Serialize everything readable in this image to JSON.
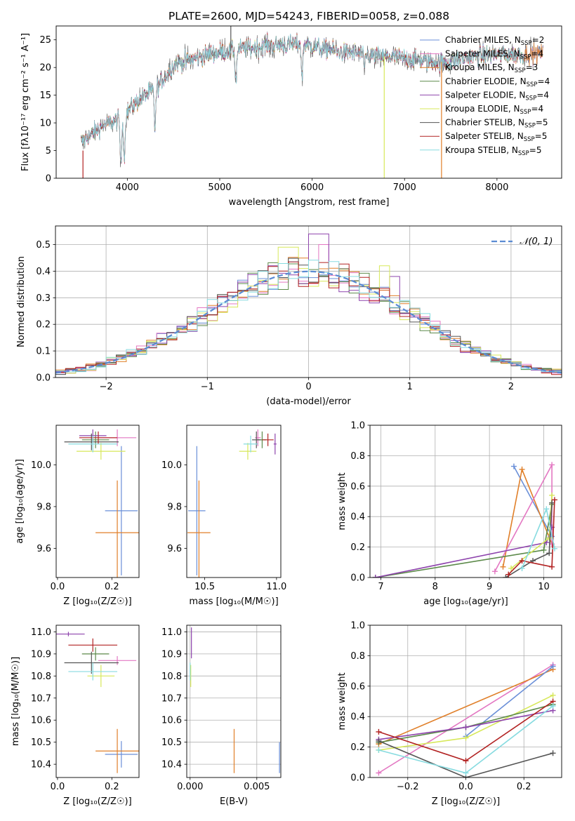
{
  "colors": {
    "chabrier_miles": "#6a8fd8",
    "salpeter_miles": "#e377c2",
    "kroupa_miles": "#e07f29",
    "chabrier_elodie": "#5c8a4a",
    "salpeter_elodie": "#8e44ad",
    "kroupa_elodie": "#d7e85a",
    "chabrier_stelib": "#555555",
    "salpeter_stelib": "#b22222",
    "kroupa_stelib": "#87dbe0",
    "grid": "#b0b0b0"
  },
  "chart_data": [
    {
      "id": "spectrum",
      "type": "line",
      "title": "PLATE=2600, MJD=54243, FIBERID=0058, z=0.088",
      "xlabel": "wavelength [Angstrom, rest frame]",
      "ylabel": "Flux [fλ10⁻¹⁷ erg cm⁻² s⁻¹ A⁻¹]",
      "xlim": [
        3230,
        8700
      ],
      "ylim": [
        0,
        27.5
      ],
      "xticks": [
        "4000",
        "5000",
        "6000",
        "7000",
        "8000"
      ],
      "yticks": [
        "0",
        "5",
        "10",
        "15",
        "20",
        "25"
      ],
      "grid": false,
      "legend_position": "top-right",
      "legend": [
        {
          "key": "chabrier_miles",
          "label": "Chabrier MILES, N",
          "sub": "SSP",
          "suffix": "=2"
        },
        {
          "key": "salpeter_miles",
          "label": "Salpeter MILES, N",
          "sub": "SSP",
          "suffix": "=4"
        },
        {
          "key": "kroupa_miles",
          "label": "Kroupa MILES, N",
          "sub": "SSP",
          "suffix": "=3"
        },
        {
          "key": "chabrier_elodie",
          "label": "Chabrier ELODIE, N",
          "sub": "SSP",
          "suffix": "=4"
        },
        {
          "key": "salpeter_elodie",
          "label": "Salpeter ELODIE, N",
          "sub": "SSP",
          "suffix": "=4"
        },
        {
          "key": "kroupa_elodie",
          "label": "Kroupa ELODIE, N",
          "sub": "SSP",
          "suffix": "=4"
        },
        {
          "key": "chabrier_stelib",
          "label": "Chabrier STELIB, N",
          "sub": "SSP",
          "suffix": "=5"
        },
        {
          "key": "salpeter_stelib",
          "label": "Salpeter STELIB, N",
          "sub": "SSP",
          "suffix": "=5"
        },
        {
          "key": "kroupa_stelib",
          "label": "Kroupa STELIB, N",
          "sub": "SSP",
          "suffix": "=5"
        }
      ],
      "continuum": {
        "wavelength": [
          3500,
          3650,
          3800,
          3950,
          4050,
          4150,
          4300,
          4500,
          4700,
          4900,
          5100,
          5300,
          5500,
          5700,
          5900,
          6100,
          6300,
          6500,
          6700,
          6900,
          7100,
          7300,
          7500,
          7700,
          7900,
          8100,
          8300,
          8500
        ],
        "flux": [
          6.5,
          8.5,
          10.0,
          11.0,
          13.0,
          14.5,
          16.0,
          20.5,
          21.5,
          22.5,
          23.0,
          23.5,
          24.0,
          24.0,
          24.3,
          23.5,
          22.8,
          22.5,
          22.0,
          21.8,
          21.5,
          21.0,
          21.0,
          21.8,
          22.2,
          22.3,
          22.4,
          22.5
        ],
        "noise_amplitude": 1.5
      },
      "dips": [
        {
          "wavelength": 3930,
          "flux": 2.0
        },
        {
          "wavelength": 3968,
          "flux": 3.5
        },
        {
          "wavelength": 4300,
          "flux": 9.0
        },
        {
          "wavelength": 5175,
          "flux": 17.5
        },
        {
          "wavelength": 5890,
          "flux": 18.0
        },
        {
          "wavelength": 6563,
          "flux": 19.5
        }
      ],
      "spikes": [
        {
          "key": "kroupa_elodie",
          "wavelength": 6780,
          "from": 22.0,
          "to": 0
        },
        {
          "key": "kroupa_miles",
          "wavelength": 7400,
          "from": 21.0,
          "to": 0
        },
        {
          "key": "chabrier_stelib",
          "wavelength": 5120,
          "from": 23.0,
          "to": 27.5
        },
        {
          "key": "salpeter_stelib",
          "wavelength": 3520,
          "from": 5.0,
          "to": 0
        }
      ]
    },
    {
      "id": "residuals",
      "type": "histogram",
      "xlabel": "(data-model)/error",
      "ylabel": "Normed distribution",
      "xlim": [
        -2.5,
        2.5
      ],
      "ylim": [
        0,
        0.57
      ],
      "xticks": [
        "−2",
        "−1",
        "0",
        "1",
        "2"
      ],
      "yticks": [
        "0.0",
        "0.1",
        "0.2",
        "0.3",
        "0.4",
        "0.5"
      ],
      "grid": true,
      "legend_position": "top-right",
      "legend": [
        {
          "label": "𝒩(0, 1)"
        }
      ],
      "reference": {
        "type": "normal",
        "mean": 0,
        "std": 1
      },
      "bin_width": 0.1,
      "spikes": [
        {
          "key": "salpeter_elodie",
          "x": 0.1,
          "y": 0.54
        },
        {
          "key": "salpeter_miles",
          "x": 0.15,
          "y": 0.5
        },
        {
          "key": "kroupa_elodie",
          "x": -0.2,
          "y": 0.49
        },
        {
          "key": "kroupa_elodie",
          "x": 0.75,
          "y": 0.42
        },
        {
          "key": "salpeter_elodie",
          "x": 0.85,
          "y": 0.38
        }
      ]
    },
    {
      "id": "age-z",
      "type": "errorbar",
      "xlabel": "Z [log₁₀(Z/Z☉)]",
      "ylabel": "age  [log₁₀(age/yr)]",
      "xlim": [
        -0.005,
        0.3
      ],
      "ylim": [
        9.46,
        10.19
      ],
      "xticks": [
        "0.0",
        "0.2"
      ],
      "yticks": [
        "9.6",
        "9.8",
        "10.0"
      ],
      "grid": false,
      "points": [
        {
          "key": "chabrier_miles",
          "x": 0.235,
          "xerr": 0.06,
          "y": 9.78,
          "yerr": 0.31
        },
        {
          "key": "kroupa_miles",
          "x": 0.22,
          "xerr": 0.08,
          "y": 9.675,
          "yerr": 0.25
        },
        {
          "key": "salpeter_miles",
          "x": 0.22,
          "xerr": 0.07,
          "y": 10.13,
          "yerr": 0.04
        },
        {
          "key": "chabrier_elodie",
          "x": 0.14,
          "xerr": 0.05,
          "y": 10.12,
          "yerr": 0.04
        },
        {
          "key": "salpeter_elodie",
          "x": 0.13,
          "xerr": 0.05,
          "y": 10.14,
          "yerr": 0.03
        },
        {
          "key": "kroupa_elodie",
          "x": 0.16,
          "xerr": 0.09,
          "y": 10.065,
          "yerr": 0.04
        },
        {
          "key": "chabrier_stelib",
          "x": 0.125,
          "xerr": 0.1,
          "y": 10.11,
          "yerr": 0.04
        },
        {
          "key": "salpeter_stelib",
          "x": 0.15,
          "xerr": 0.07,
          "y": 10.13,
          "yerr": 0.03
        },
        {
          "key": "kroupa_stelib",
          "x": 0.13,
          "xerr": 0.09,
          "y": 10.1,
          "yerr": 0.04
        }
      ]
    },
    {
      "id": "age-mass",
      "type": "errorbar",
      "xlabel": "mass [log₁₀(M/M☉)]",
      "ylabel": "",
      "xlim": [
        10.375,
        11.03
      ],
      "ylim": [
        9.46,
        10.19
      ],
      "xticks": [
        "10.5",
        "11.0"
      ],
      "yticks": [
        "9.6",
        "9.8",
        "10.0"
      ],
      "grid": false,
      "points": [
        {
          "key": "chabrier_miles",
          "x": 10.445,
          "xerr": 0.06,
          "y": 9.78,
          "yerr": 0.31
        },
        {
          "key": "kroupa_miles",
          "x": 10.46,
          "xerr": 0.08,
          "y": 9.675,
          "yerr": 0.25
        },
        {
          "key": "salpeter_miles",
          "x": 10.87,
          "xerr": 0.02,
          "y": 10.13,
          "yerr": 0.04
        },
        {
          "key": "chabrier_elodie",
          "x": 10.9,
          "xerr": 0.03,
          "y": 10.12,
          "yerr": 0.04
        },
        {
          "key": "salpeter_elodie",
          "x": 10.99,
          "xerr": 0.01,
          "y": 10.1,
          "yerr": 0.05
        },
        {
          "key": "kroupa_elodie",
          "x": 10.8,
          "xerr": 0.06,
          "y": 10.065,
          "yerr": 0.04
        },
        {
          "key": "chabrier_stelib",
          "x": 10.86,
          "xerr": 0.03,
          "y": 10.12,
          "yerr": 0.04
        },
        {
          "key": "salpeter_stelib",
          "x": 10.94,
          "xerr": 0.04,
          "y": 10.12,
          "yerr": 0.03
        },
        {
          "key": "kroupa_stelib",
          "x": 10.82,
          "xerr": 0.05,
          "y": 10.1,
          "yerr": 0.04
        }
      ]
    },
    {
      "id": "mass-weight-age",
      "type": "line",
      "xlabel": "age  [log₁₀(age/yr)]",
      "ylabel": "mass weight",
      "xlim": [
        6.8,
        10.33
      ],
      "ylim": [
        0,
        1
      ],
      "xticks": [
        "7",
        "8",
        "9",
        "10"
      ],
      "yticks": [
        "0.0",
        "0.2",
        "0.4",
        "0.6",
        "0.8",
        "1.0"
      ],
      "grid": true,
      "series": [
        {
          "key": "chabrier_miles",
          "x": [
            9.45,
            10.15
          ],
          "y": [
            0.73,
            0.27
          ]
        },
        {
          "key": "kroupa_miles",
          "x": [
            9.25,
            9.6,
            10.15
          ],
          "y": [
            0.07,
            0.71,
            0.22
          ]
        },
        {
          "key": "salpeter_miles",
          "x": [
            9.1,
            10.15,
            10.15
          ],
          "y": [
            0.04,
            0.74,
            0.22
          ]
        },
        {
          "key": "chabrier_elodie",
          "x": [
            6.9,
            10.0,
            10.15
          ],
          "y": [
            0.0,
            0.18,
            0.48
          ]
        },
        {
          "key": "salpeter_elodie",
          "x": [
            6.9,
            10.05,
            10.15
          ],
          "y": [
            0.0,
            0.23,
            0.33
          ]
        },
        {
          "key": "kroupa_elodie",
          "x": [
            9.4,
            10.1,
            10.15
          ],
          "y": [
            0.06,
            0.26,
            0.54
          ]
        },
        {
          "key": "chabrier_stelib",
          "x": [
            9.3,
            9.8,
            10.1,
            10.15
          ],
          "y": [
            0.0,
            0.11,
            0.16,
            0.49
          ]
        },
        {
          "key": "salpeter_stelib",
          "x": [
            9.35,
            9.6,
            10.15,
            10.2
          ],
          "y": [
            0.02,
            0.11,
            0.07,
            0.51
          ]
        },
        {
          "key": "kroupa_stelib",
          "x": [
            9.6,
            10.05,
            10.2
          ],
          "y": [
            0.06,
            0.45,
            0.19
          ]
        }
      ]
    },
    {
      "id": "mass-z",
      "type": "errorbar",
      "xlabel": "Z [log₁₀(Z/Z☉)]",
      "ylabel": "mass [log₁₀(M/M☉)]",
      "xlim": [
        -0.005,
        0.3
      ],
      "ylim": [
        10.34,
        11.03
      ],
      "xticks": [
        "0.0",
        "0.2"
      ],
      "yticks": [
        "10.4",
        "10.5",
        "10.6",
        "10.7",
        "10.8",
        "10.9",
        "11.0"
      ],
      "grid": false,
      "points": [
        {
          "key": "chabrier_miles",
          "x": 0.235,
          "xerr": 0.06,
          "y": 10.445,
          "yerr": 0.06
        },
        {
          "key": "kroupa_miles",
          "x": 0.22,
          "xerr": 0.08,
          "y": 10.46,
          "yerr": 0.1
        },
        {
          "key": "salpeter_miles",
          "x": 0.22,
          "xerr": 0.07,
          "y": 10.87,
          "yerr": 0.02
        },
        {
          "key": "chabrier_elodie",
          "x": 0.14,
          "xerr": 0.05,
          "y": 10.9,
          "yerr": 0.03
        },
        {
          "key": "salpeter_elodie",
          "x": 0.04,
          "xerr": 0.06,
          "y": 10.99,
          "yerr": 0.01
        },
        {
          "key": "kroupa_elodie",
          "x": 0.16,
          "xerr": 0.05,
          "y": 10.8,
          "yerr": 0.05
        },
        {
          "key": "chabrier_stelib",
          "x": 0.125,
          "xerr": 0.1,
          "y": 10.86,
          "yerr": 0.05
        },
        {
          "key": "salpeter_stelib",
          "x": 0.13,
          "xerr": 0.09,
          "y": 10.94,
          "yerr": 0.03
        },
        {
          "key": "kroupa_stelib",
          "x": 0.13,
          "xerr": 0.09,
          "y": 10.82,
          "yerr": 0.04
        }
      ]
    },
    {
      "id": "mass-ebv",
      "type": "errorbar",
      "xlabel": "E(B-V)",
      "ylabel": "",
      "xlim": [
        -0.00025,
        0.0068
      ],
      "ylim": [
        10.34,
        11.03
      ],
      "xticks": [
        "0.000",
        "0.005"
      ],
      "yticks": [
        "10.4",
        "10.5",
        "10.6",
        "10.7",
        "10.8",
        "10.9",
        "11.0"
      ],
      "grid": true,
      "points": [
        {
          "key": "chabrier_miles",
          "x": 0.0067,
          "xerr": 0,
          "y": 10.43,
          "yerr": 0.07
        },
        {
          "key": "kroupa_miles",
          "x": 0.0033,
          "xerr": 0,
          "y": 10.46,
          "yerr": 0.1
        },
        {
          "key": "salpeter_elodie",
          "x": 0.0001,
          "xerr": 0,
          "y": 10.95,
          "yerr": 0.07
        },
        {
          "key": "kroupa_elodie",
          "x": 5e-05,
          "xerr": 0,
          "y": 10.8,
          "yerr": 0.05
        },
        {
          "key": "kroupa_stelib",
          "x": 0.0,
          "xerr": 0,
          "y": 10.82,
          "yerr": 0.04
        }
      ]
    },
    {
      "id": "mass-weight-z",
      "type": "line",
      "xlabel": "Z [log₁₀(Z/Z☉)]",
      "ylabel": "mass weight",
      "xlim": [
        -0.33,
        0.33
      ],
      "ylim": [
        0,
        1
      ],
      "xticks": [
        "−0.2",
        "0.0",
        "0.2"
      ],
      "yticks": [
        "0.0",
        "0.2",
        "0.4",
        "0.6",
        "0.8",
        "1.0"
      ],
      "grid": true,
      "series": [
        {
          "key": "salpeter_miles",
          "x": [
            -0.3,
            0.3
          ],
          "y": [
            0.03,
            0.74
          ]
        },
        {
          "key": "kroupa_miles",
          "x": [
            -0.3,
            0.3
          ],
          "y": [
            0.22,
            0.71
          ]
        },
        {
          "key": "chabrier_miles",
          "x": [
            0.0,
            0.3
          ],
          "y": [
            0.27,
            0.73
          ]
        },
        {
          "key": "kroupa_elodie",
          "x": [
            -0.3,
            0.0,
            0.3
          ],
          "y": [
            0.18,
            0.26,
            0.54
          ]
        },
        {
          "key": "chabrier_elodie",
          "x": [
            -0.3,
            0.0,
            0.3
          ],
          "y": [
            0.23,
            0.33,
            0.48
          ]
        },
        {
          "key": "salpeter_elodie",
          "x": [
            -0.3,
            0.0,
            0.3
          ],
          "y": [
            0.25,
            0.33,
            0.44
          ]
        },
        {
          "key": "chabrier_stelib",
          "x": [
            -0.3,
            0.0,
            0.3
          ],
          "y": [
            0.24,
            0.0,
            0.16
          ]
        },
        {
          "key": "salpeter_stelib",
          "x": [
            -0.3,
            0.0,
            0.3
          ],
          "y": [
            0.3,
            0.11,
            0.5
          ]
        },
        {
          "key": "kroupa_stelib",
          "x": [
            -0.3,
            0.0,
            0.3
          ],
          "y": [
            0.18,
            0.03,
            0.47
          ]
        }
      ]
    }
  ]
}
